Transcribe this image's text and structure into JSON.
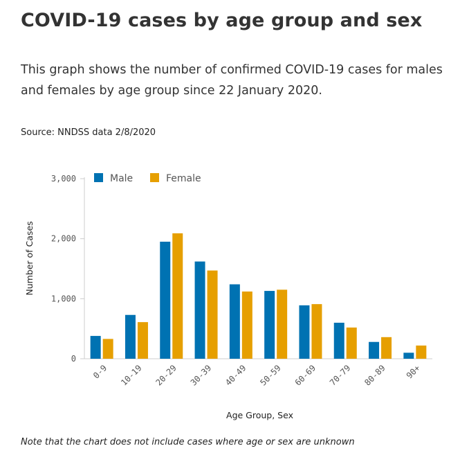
{
  "title": "COVID-19 cases by age group and sex",
  "subtitle": "This graph shows the number of confirmed COVID-19 cases for males and females by age group since 22 January 2020.",
  "source": "Source: NNDSS data 2/8/2020",
  "note": "Note that the chart does not include cases where age or sex are unknown",
  "chart_data": {
    "type": "bar",
    "title": "COVID-19 cases by age group and sex",
    "xlabel": "Age Group, Sex",
    "ylabel": "Number of Cases",
    "ylim": [
      0,
      3000
    ],
    "yticks": [
      0,
      1000,
      2000,
      3000
    ],
    "ytick_labels": [
      "0",
      "1,000",
      "2,000",
      "3,000"
    ],
    "grid": false,
    "legend_position": "top-left",
    "categories": [
      "0-9",
      "10-19",
      "20-29",
      "30-39",
      "40-49",
      "50-59",
      "60-69",
      "70-79",
      "80-89",
      "90+"
    ],
    "series": [
      {
        "name": "Male",
        "color": "#0072b2",
        "values": [
          380,
          730,
          1950,
          1620,
          1240,
          1130,
          890,
          600,
          280,
          100
        ]
      },
      {
        "name": "Female",
        "color": "#e69f00",
        "values": [
          330,
          610,
          2090,
          1470,
          1120,
          1150,
          910,
          520,
          360,
          220
        ]
      }
    ]
  }
}
